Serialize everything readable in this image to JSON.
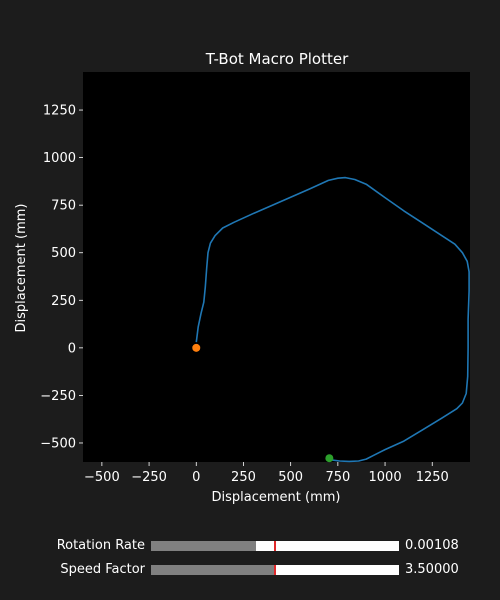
{
  "app": {
    "title": "T-Bot Macro Plotter"
  },
  "chart_data": {
    "type": "line",
    "title": "T-Bot Macro Plotter",
    "xlabel": "Displacement (mm)",
    "ylabel": "Displacement (mm)",
    "xlim": [
      -600,
      1450
    ],
    "ylim": [
      -600,
      1450
    ],
    "xticks": [
      -500,
      -250,
      0,
      250,
      500,
      750,
      1000,
      1250
    ],
    "xtick_labels": [
      "−500",
      "−250",
      "0",
      "250",
      "500",
      "750",
      "1000",
      "1250"
    ],
    "yticks": [
      -500,
      -250,
      0,
      250,
      500,
      750,
      1000,
      1250
    ],
    "ytick_labels": [
      "−500",
      "−250",
      "0",
      "250",
      "500",
      "750",
      "1000",
      "1250"
    ],
    "grid": false,
    "background": "#000000",
    "figure_background": "#1c1c1c",
    "series": [
      {
        "color": "#1f77b4",
        "points": [
          [
            0,
            30
          ],
          [
            10,
            110
          ],
          [
            25,
            180
          ],
          [
            40,
            240
          ],
          [
            48,
            320
          ],
          [
            55,
            420
          ],
          [
            62,
            500
          ],
          [
            75,
            550
          ],
          [
            100,
            590
          ],
          [
            140,
            630
          ],
          [
            200,
            660
          ],
          [
            300,
            705
          ],
          [
            450,
            770
          ],
          [
            600,
            835
          ],
          [
            700,
            880
          ],
          [
            750,
            892
          ],
          [
            790,
            895
          ],
          [
            840,
            885
          ],
          [
            900,
            860
          ],
          [
            1000,
            790
          ],
          [
            1100,
            720
          ],
          [
            1200,
            655
          ],
          [
            1300,
            590
          ],
          [
            1370,
            545
          ],
          [
            1410,
            500
          ],
          [
            1435,
            455
          ],
          [
            1445,
            400
          ],
          [
            1445,
            300
          ],
          [
            1440,
            150
          ],
          [
            1440,
            0
          ],
          [
            1438,
            -150
          ],
          [
            1430,
            -240
          ],
          [
            1410,
            -290
          ],
          [
            1380,
            -320
          ],
          [
            1300,
            -370
          ],
          [
            1200,
            -430
          ],
          [
            1100,
            -490
          ],
          [
            1000,
            -535
          ],
          [
            940,
            -565
          ],
          [
            900,
            -585
          ],
          [
            860,
            -595
          ],
          [
            810,
            -597
          ],
          [
            760,
            -595
          ],
          [
            720,
            -590
          ],
          [
            700,
            -583
          ]
        ]
      }
    ],
    "markers": [
      {
        "name": "start",
        "x": 0,
        "y": 0,
        "color": "#ff7f0e"
      },
      {
        "name": "end",
        "x": 705,
        "y": -580,
        "color": "#2ca02c"
      }
    ]
  },
  "sliders": [
    {
      "label": "Rotation Rate",
      "value_text": "0.00108",
      "fill_fraction": 0.425,
      "initial_fraction": 0.5
    },
    {
      "label": "Speed Factor",
      "value_text": "3.50000",
      "fill_fraction": 0.5,
      "initial_fraction": 0.5
    }
  ],
  "colors": {
    "slider_fill": "#808080",
    "slider_track": "#ffffff",
    "slider_initial_marker": "#e0282a",
    "text": "#ffffff"
  }
}
